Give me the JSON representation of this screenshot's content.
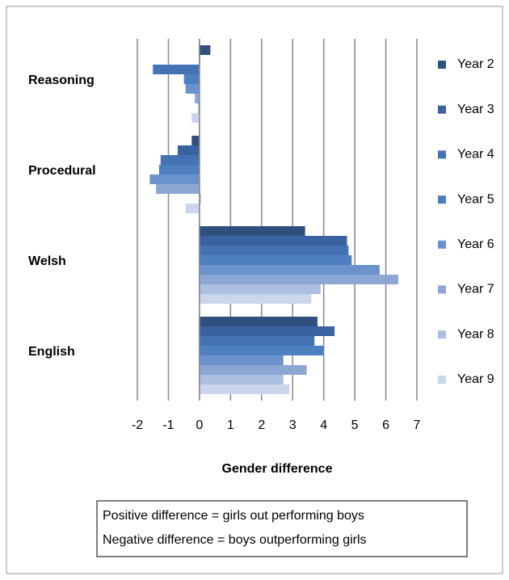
{
  "chart_data": {
    "type": "barh",
    "categories": [
      "Reasoning",
      "Procedural",
      "Welsh",
      "English"
    ],
    "series": [
      {
        "name": "Year 2",
        "color": "#2f4f7e",
        "values": [
          0.35,
          -0.25,
          3.4,
          3.8
        ]
      },
      {
        "name": "Year 3",
        "color": "#3a62a0",
        "values": [
          0.02,
          -0.7,
          4.75,
          4.35
        ]
      },
      {
        "name": "Year 4",
        "color": "#4473b3",
        "values": [
          -1.5,
          -1.25,
          4.8,
          3.7
        ]
      },
      {
        "name": "Year 5",
        "color": "#4e7fc1",
        "values": [
          -0.5,
          -1.3,
          4.9,
          4.0
        ]
      },
      {
        "name": "Year 6",
        "color": "#6a92cb",
        "values": [
          -0.45,
          -1.6,
          5.8,
          2.7
        ]
      },
      {
        "name": "Year 7",
        "color": "#8da7d5",
        "values": [
          -0.15,
          -1.4,
          6.4,
          3.45
        ]
      },
      {
        "name": "Year 8",
        "color": "#adbfe0",
        "values": [
          -0.05,
          0.05,
          3.9,
          2.7
        ]
      },
      {
        "name": "Year 9",
        "color": "#cad6ec",
        "values": [
          -0.25,
          -0.45,
          3.6,
          2.9
        ]
      }
    ],
    "xlabel": "Gender difference",
    "xlim": [
      -2,
      7
    ],
    "xticks": [
      -2,
      -1,
      0,
      1,
      2,
      3,
      4,
      5,
      6,
      7
    ],
    "grid": true,
    "legend": "right",
    "annotations": [
      "Positive difference = girls out performing boys",
      "Negative difference = boys outperforming girls"
    ]
  }
}
